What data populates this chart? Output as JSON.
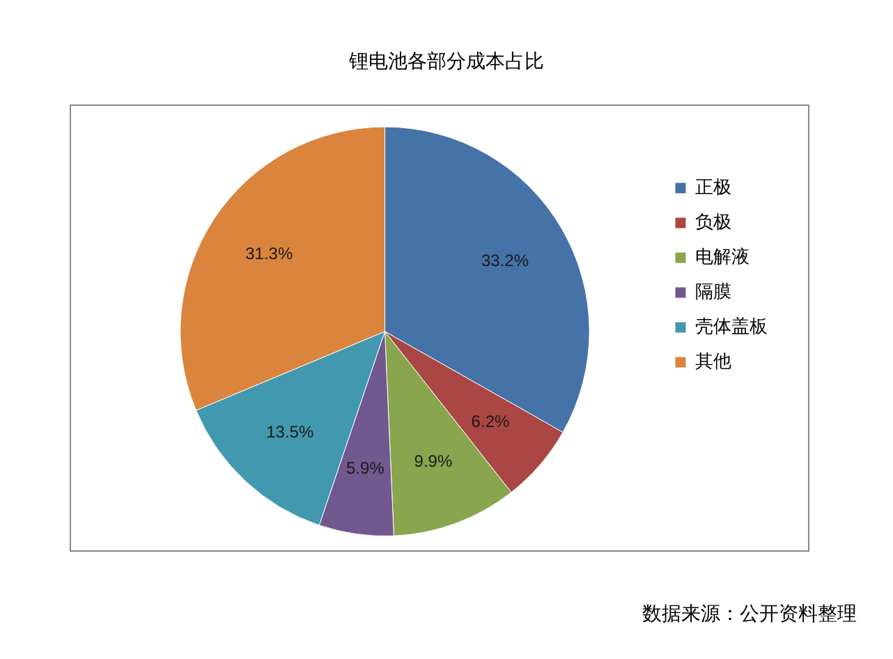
{
  "chart_data": {
    "type": "pie",
    "title": "锂电池各部分成本占比",
    "categories": [
      "正极",
      "负极",
      "电解液",
      "隔膜",
      "壳体盖板",
      "其他"
    ],
    "values": [
      33.2,
      6.2,
      9.9,
      5.9,
      13.5,
      31.3
    ],
    "value_labels": [
      "33.2%",
      "6.2%",
      "9.9%",
      "5.9%",
      "13.5%",
      "31.3%"
    ],
    "colors": [
      "#4572a7",
      "#aa4643",
      "#89a54e",
      "#71588f",
      "#4198af",
      "#db843d"
    ],
    "legend": "right",
    "annotations": [
      "数据来源：公开资料整理"
    ]
  }
}
